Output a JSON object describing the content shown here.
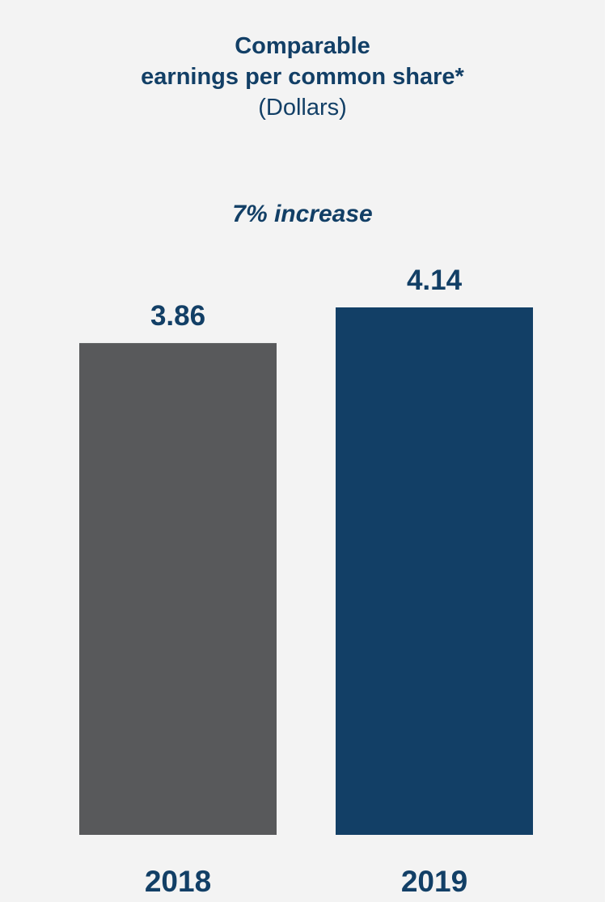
{
  "chart_data": {
    "type": "bar",
    "title": "Comparable earnings per common share*",
    "title_lines": [
      "Comparable",
      "earnings per common share*"
    ],
    "subtitle": "(Dollars)",
    "annotation": "7% increase",
    "categories": [
      "2018",
      "2019"
    ],
    "values": [
      3.86,
      4.14
    ],
    "data_labels": [
      "3.86",
      "4.14"
    ],
    "bar_colors": [
      "#58595b",
      "#123f66"
    ],
    "text_color": "#123f66",
    "background_color": "#f3f3f3",
    "xlabel": "",
    "ylabel": "",
    "ylim": [
      0,
      4.14
    ],
    "grid": false,
    "legend": "none"
  }
}
